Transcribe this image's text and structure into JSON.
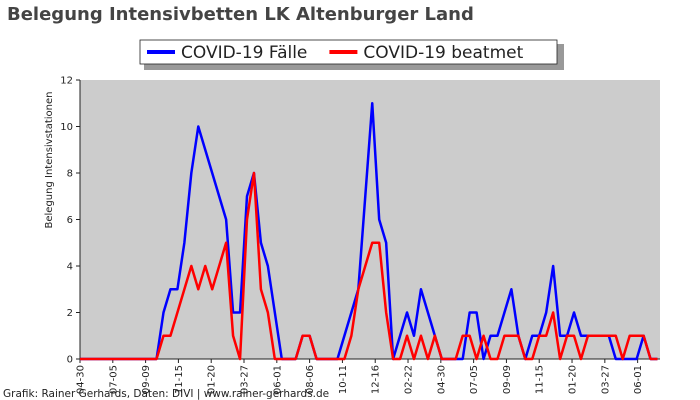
{
  "chart_data": {
    "type": "line",
    "title": "Belegung Intensivbetten LK Altenburger Land",
    "ylabel": "Belegung Intensivstationen",
    "footer": "Grafik: Rainer Gerhards, Daten: DIVI | www.rainer-gerhards.de",
    "x": [
      0,
      14,
      28,
      42,
      56,
      70,
      84,
      98,
      112,
      126,
      140,
      154,
      168,
      182,
      196,
      210,
      224,
      238,
      252,
      266,
      280,
      294,
      308,
      322,
      336,
      350,
      364,
      378,
      392,
      406,
      420,
      434,
      448,
      462,
      476,
      490,
      504,
      518,
      532,
      546,
      560,
      574,
      588,
      602,
      616,
      630,
      644,
      658,
      672,
      686,
      700,
      714,
      728,
      742,
      756,
      770,
      784,
      798,
      812,
      826,
      840,
      854,
      868,
      882,
      896,
      910,
      924,
      938,
      952,
      966,
      980,
      994,
      1008,
      1022,
      1036,
      1050,
      1064,
      1078,
      1092,
      1106,
      1120,
      1134,
      1148,
      1162
    ],
    "series": [
      {
        "name": "COVID-19 Fälle",
        "color": "#0000ff",
        "values": [
          0,
          0,
          0,
          0,
          0,
          0,
          0,
          0,
          0,
          0,
          0,
          0,
          2,
          3,
          3,
          5,
          8,
          10,
          9,
          8,
          7,
          6,
          2,
          2,
          7,
          8,
          5,
          4,
          2,
          0,
          0,
          0,
          1,
          1,
          0,
          0,
          0,
          0,
          1,
          2,
          3,
          7,
          11,
          6,
          5,
          0,
          1,
          2,
          1,
          3,
          2,
          1,
          0,
          0,
          0,
          0,
          2,
          2,
          0,
          1,
          1,
          2,
          3,
          1,
          0,
          1,
          1,
          2,
          4,
          1,
          1,
          2,
          1,
          1,
          1,
          1,
          1,
          0,
          0,
          0,
          0,
          1,
          0,
          0
        ]
      },
      {
        "name": "COVID-19 beatmet",
        "color": "#ff0000",
        "values": [
          0,
          0,
          0,
          0,
          0,
          0,
          0,
          0,
          0,
          0,
          0,
          0,
          1,
          1,
          2,
          3,
          4,
          3,
          4,
          3,
          4,
          5,
          1,
          0,
          6,
          8,
          3,
          2,
          0,
          0,
          0,
          0,
          1,
          1,
          0,
          0,
          0,
          0,
          0,
          1,
          3,
          4,
          5,
          5,
          2,
          0,
          0,
          1,
          0,
          1,
          0,
          1,
          0,
          0,
          0,
          1,
          1,
          0,
          1,
          0,
          0,
          1,
          1,
          1,
          0,
          0,
          1,
          1,
          2,
          0,
          1,
          1,
          0,
          1,
          1,
          1,
          1,
          1,
          0,
          1,
          1,
          1,
          0,
          0
        ]
      }
    ],
    "xlim": [
      0,
      1167
    ],
    "xticks": [
      {
        "value": 0,
        "label": "04-30"
      },
      {
        "value": 66,
        "label": "07-05"
      },
      {
        "value": 132,
        "label": "09-09"
      },
      {
        "value": 198,
        "label": "11-15"
      },
      {
        "value": 264,
        "label": "01-20"
      },
      {
        "value": 330,
        "label": "03-27"
      },
      {
        "value": 396,
        "label": "06-01"
      },
      {
        "value": 462,
        "label": "08-06"
      },
      {
        "value": 528,
        "label": "10-11"
      },
      {
        "value": 594,
        "label": "12-16"
      },
      {
        "value": 660,
        "label": "02-22"
      },
      {
        "value": 726,
        "label": "04-30"
      },
      {
        "value": 792,
        "label": "07-05"
      },
      {
        "value": 858,
        "label": "09-09"
      },
      {
        "value": 924,
        "label": "11-15"
      },
      {
        "value": 990,
        "label": "01-20"
      },
      {
        "value": 1056,
        "label": "03-27"
      },
      {
        "value": 1122,
        "label": "06-01"
      }
    ],
    "ylim": [
      0,
      12
    ],
    "yticks": [
      0,
      2,
      4,
      6,
      8,
      10,
      12
    ],
    "legend": "top"
  }
}
